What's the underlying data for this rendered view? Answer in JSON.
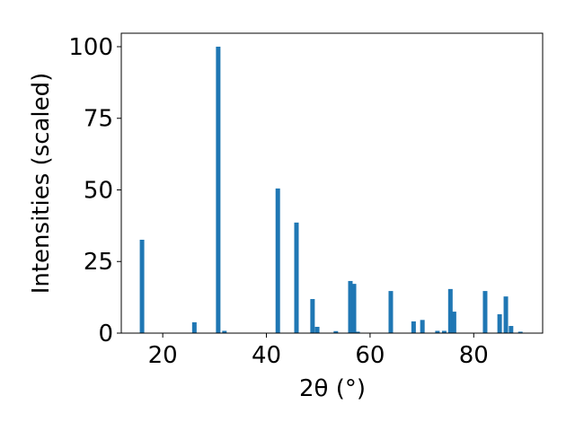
{
  "chart_data": {
    "type": "bar",
    "x_label": "2θ (°)",
    "y_label": "Intensities (scaled)",
    "color": "#1f77b4",
    "x": [
      16.0,
      26.1,
      30.7,
      31.9,
      42.2,
      45.8,
      48.9,
      49.8,
      53.4,
      56.2,
      56.9,
      57.6,
      64.0,
      68.4,
      70.1,
      73.0,
      74.3,
      75.5,
      76.2,
      82.2,
      85.0,
      86.2,
      87.2,
      89.0
    ],
    "values": [
      32.6,
      3.8,
      100,
      0.8,
      50.5,
      38.6,
      11.9,
      2.2,
      0.7,
      18.2,
      17.2,
      0.5,
      14.7,
      4.1,
      4.6,
      0.8,
      0.8,
      15.4,
      7.5,
      14.7,
      6.6,
      12.8,
      2.5,
      0.5
    ],
    "xlim": [
      12,
      93.3
    ],
    "xticks": [
      20,
      40,
      60,
      80
    ],
    "ylim": [
      0,
      104.7
    ],
    "yticks": [
      0,
      25,
      50,
      75,
      100
    ]
  }
}
